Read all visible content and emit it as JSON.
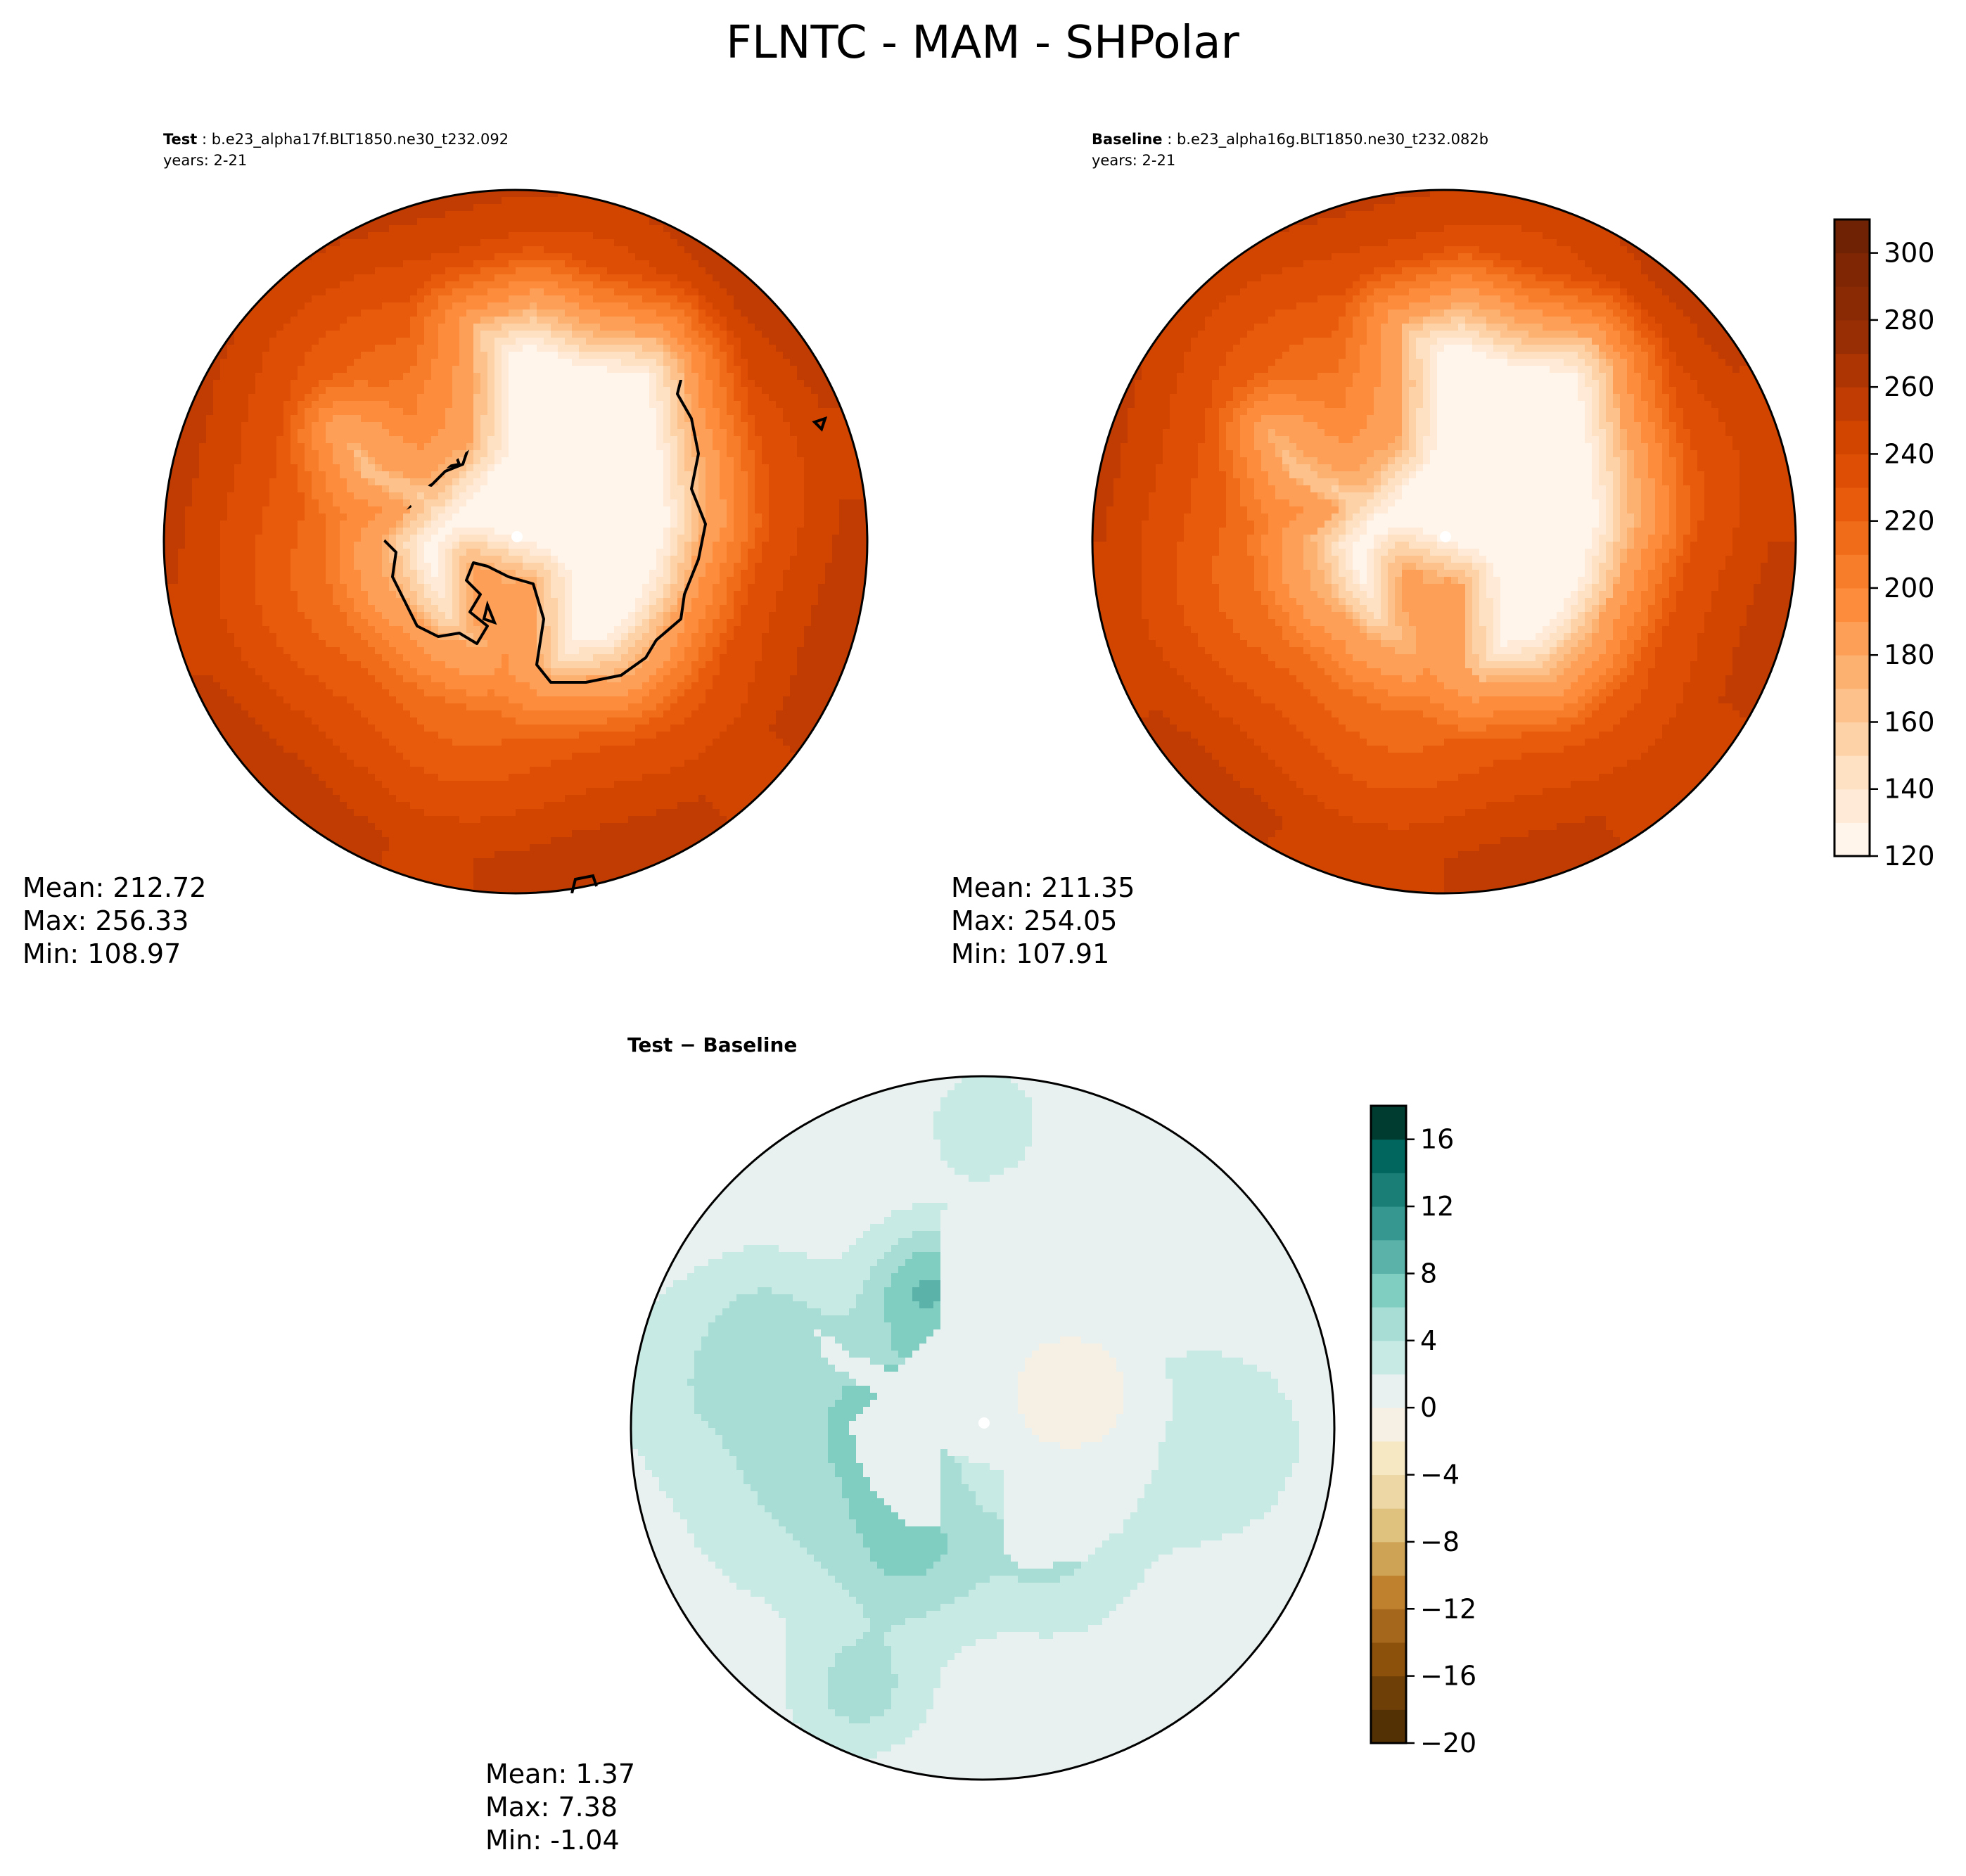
{
  "figure": {
    "title": "FLNTC - MAM - SHPolar"
  },
  "chart_data": [
    {
      "type": "heatmap",
      "projection": "south-polar-stereographic",
      "panel": "test",
      "label_bold": "Test",
      "label_sep": " : ",
      "case_name": "b.e23_alpha17f.BLT1850.ne30_t232.092",
      "years": "years: 2-21",
      "stats": {
        "mean": "Mean: 212.72",
        "max": "Max: 256.33",
        "min": "Min: 108.97"
      },
      "field": {
        "continent_value": 115,
        "coast_value": 175,
        "ocean_inner": 205,
        "ocean_outer": 252,
        "pole_shift": 0.05
      }
    },
    {
      "type": "heatmap",
      "projection": "south-polar-stereographic",
      "panel": "baseline",
      "label_bold": "Baseline",
      "label_sep": " : ",
      "case_name": "b.e23_alpha16g.BLT1850.ne30_t232.082b",
      "years": "years: 2-21",
      "stats": {
        "mean": "Mean: 211.35",
        "max": "Max: 254.05",
        "min": "Min: 107.91"
      },
      "field": {
        "continent_value": 114,
        "coast_value": 173,
        "ocean_inner": 204,
        "ocean_outer": 250,
        "pole_shift": 0.05
      },
      "colorbar": {
        "levels": [
          120,
          130,
          140,
          150,
          160,
          170,
          180,
          190,
          200,
          210,
          220,
          230,
          240,
          250,
          260,
          270,
          280,
          290,
          300,
          310
        ],
        "ticks": [
          "120",
          "140",
          "160",
          "180",
          "200",
          "220",
          "240",
          "260",
          "280",
          "300"
        ],
        "colors": [
          "#fff5eb",
          "#feead6",
          "#fee0c2",
          "#fdd2a6",
          "#fdc28c",
          "#fdb170",
          "#fd9f57",
          "#fd8d3c",
          "#f77d2a",
          "#f16c19",
          "#e95b0c",
          "#de4f05",
          "#d14501",
          "#c03c02",
          "#ad3503",
          "#982e04",
          "#8a2a04",
          "#7f2704",
          "#6f2304"
        ]
      }
    },
    {
      "type": "heatmap",
      "projection": "south-polar-stereographic",
      "panel": "difference",
      "label": "Test − Baseline",
      "stats": {
        "mean": "Mean:  1.37",
        "max": "Max:  7.38",
        "min": "Min: -1.04"
      },
      "colorbar": {
        "levels": [
          -20,
          -18,
          -16,
          -14,
          -12,
          -10,
          -8,
          -6,
          -4,
          -2,
          0,
          2,
          4,
          6,
          8,
          10,
          12,
          14,
          16,
          18
        ],
        "ticks": [
          "−20",
          "−16",
          "−12",
          "−8",
          "−4",
          "0",
          "4",
          "8",
          "12",
          "16"
        ],
        "colors": [
          "#543005",
          "#6f3f08",
          "#8c510a",
          "#a5671c",
          "#bf812d",
          "#cfa355",
          "#dfc27d",
          "#ecd7a5",
          "#f6e8c3",
          "#f5f0e3",
          "#e8f1ef",
          "#c7eae5",
          "#a8ddd5",
          "#80cdc1",
          "#5ab2a8",
          "#35978f",
          "#1b7e76",
          "#01665e",
          "#003c30"
        ]
      }
    }
  ]
}
